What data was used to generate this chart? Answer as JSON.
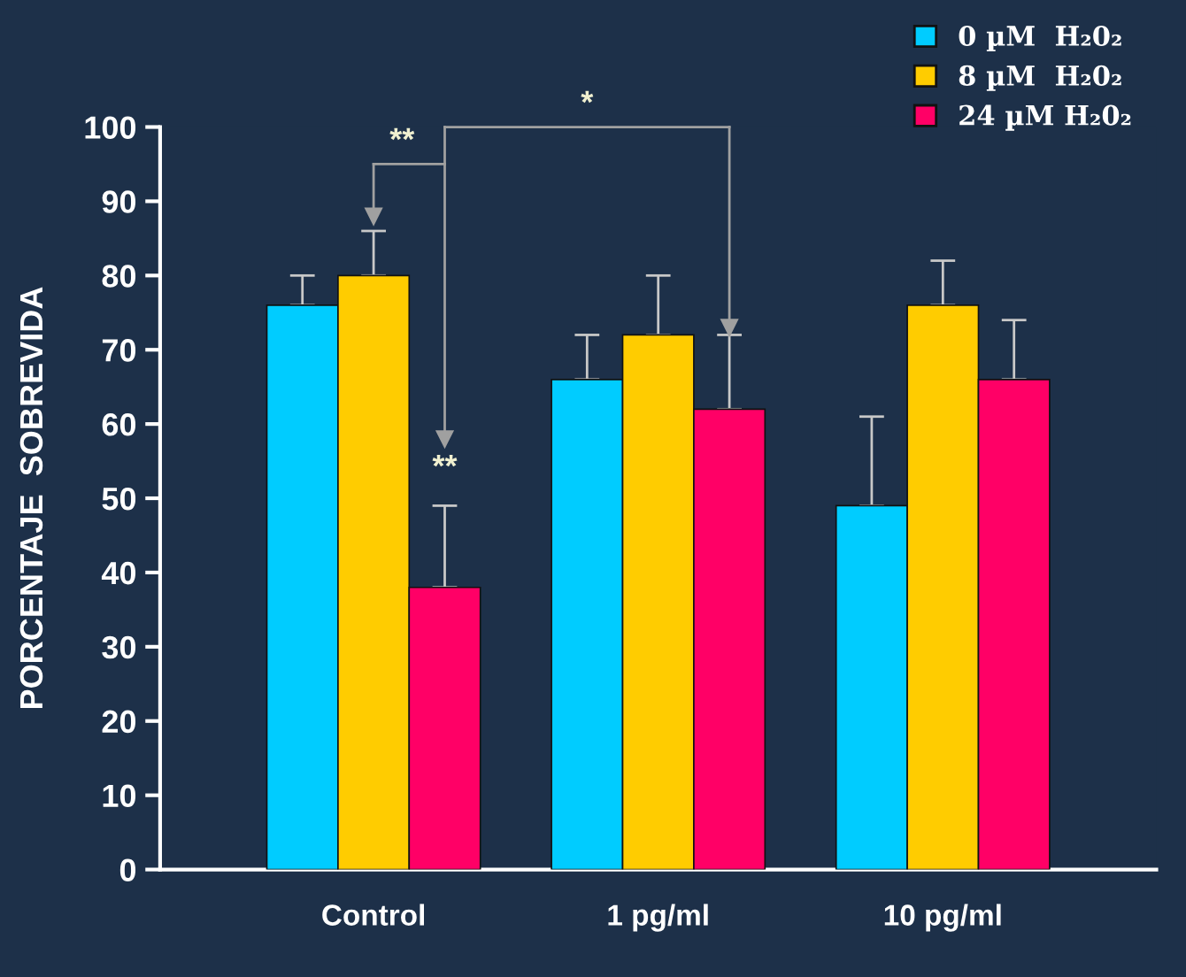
{
  "chart_data": {
    "type": "bar",
    "ylabel": "PORCENTAJE  SOBREVIDA",
    "categories": [
      "Control",
      "1 pg/ml",
      "10 pg/ml"
    ],
    "series": [
      {
        "name": "0 µM  H₂0₂",
        "color": "#00ccff",
        "values": [
          76,
          66,
          49
        ],
        "errors": [
          [
            76,
            80
          ],
          [
            66,
            72
          ],
          [
            49,
            61
          ]
        ]
      },
      {
        "name": "8 µM  H₂0₂",
        "color": "#ffcc00",
        "values": [
          80,
          72,
          76
        ],
        "errors": [
          [
            80,
            86
          ],
          [
            72,
            80
          ],
          [
            76,
            82
          ]
        ]
      },
      {
        "name": "24 µM H₂0₂",
        "color": "#ff0066",
        "values": [
          38,
          62,
          66
        ],
        "errors": [
          [
            38,
            49
          ],
          [
            62,
            72
          ],
          [
            66,
            74
          ]
        ]
      }
    ],
    "ylim": [
      0,
      100
    ],
    "yticks": [
      0,
      10,
      20,
      30,
      40,
      50,
      60,
      70,
      80,
      90,
      100
    ],
    "annotations": [
      "**",
      "*",
      "**"
    ],
    "grid": false,
    "legend": "top right"
  }
}
